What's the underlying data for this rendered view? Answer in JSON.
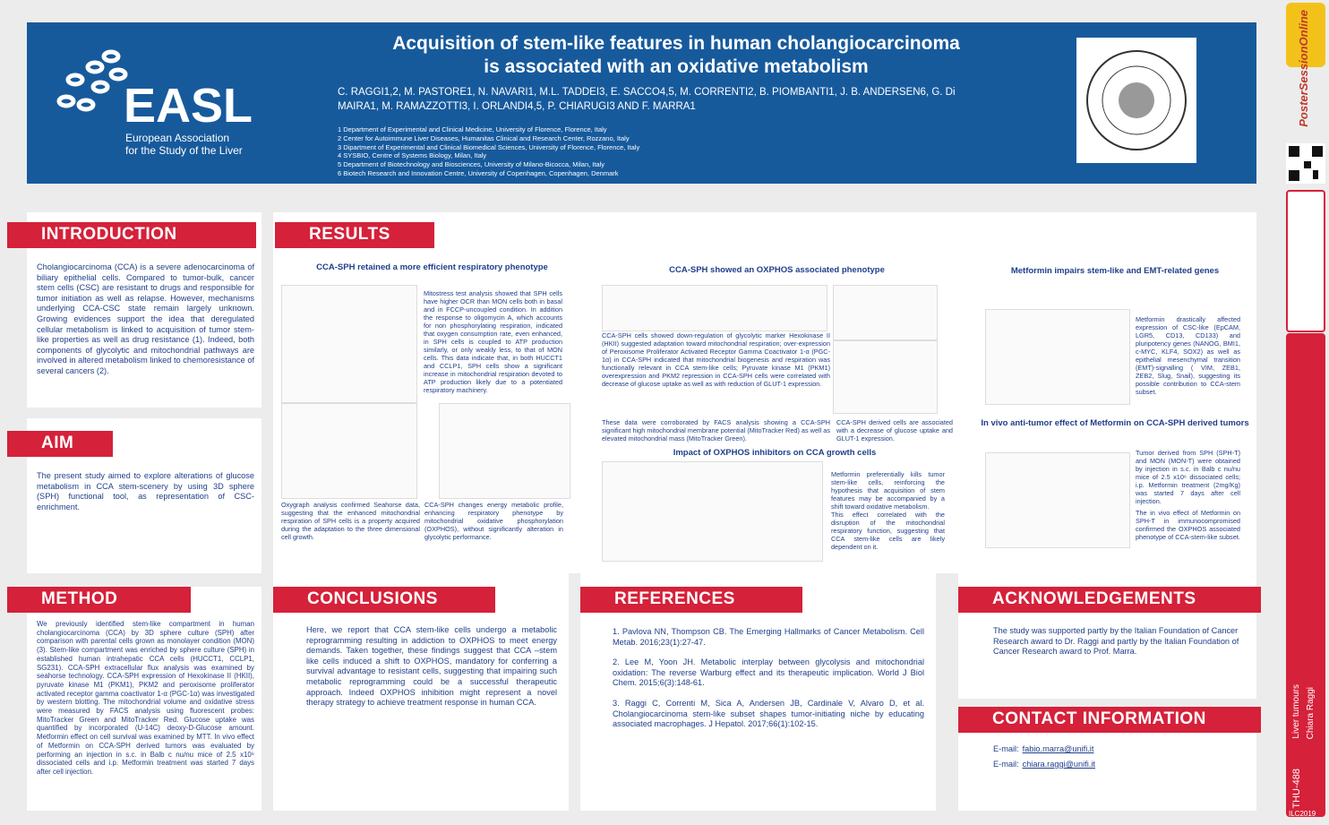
{
  "header": {
    "title_line1": "Acquisition of stem-like features in human cholangiocarcinoma",
    "title_line2": "is associated with an oxidative metabolism",
    "authors_line1": "C. RAGGI1,2, M. PASTORE1, N. NAVARI1, M.L. TADDEI3, E. SACCO4,5, M. CORRENTI2, B. PIOMBANTI1, J. B. ANDERSEN6, G. Di",
    "authors_line2": "MAIRA1, M. RAMAZZOTTI3, I. ORLANDI4,5, P. CHIARUGI3 AND F. MARRA1",
    "affiliations": [
      "1 Department of Experimental and Clinical Medicine, University of Florence, Florence, Italy",
      "2 Center for Autoimmune Liver Diseases, Humanitas Clinical and Research Center, Rozzano, Italy",
      "3 Dipartment of Experimental and Clinical Biomedical Sciences, University of Florence, Florence, Italy",
      "4 SYSBIO, Centre of Systems Biology, Milan, Italy",
      "5 Department of Biotechnology and Biosciences, University of Milano-Bicocca, Milan, Italy",
      "6 Biotech Research and Innovation Centre, University of Copenhagen, Copenhagen, Denmark"
    ],
    "logo": "EASL",
    "logo_sub1": "European Association",
    "logo_sub2": "for the Study of the Liver"
  },
  "introduction": {
    "heading": "INTRODUCTION",
    "text": "Cholangiocarcinoma (CCA) is a severe adenocarcinoma of biliary epithelial cells. Compared to tumor-bulk, cancer stem cells (CSC) are resistant to drugs and responsible for tumor initiation as well as relapse. However, mechanisms underlying CCA-CSC state remain largely unknown. Growing evidences support the idea that deregulated cellular metabolism is linked to acquisition of tumor stem-like properties as well as drug resistance (1). Indeed, both components of glycolytic and mitochondrial pathways are involved in altered metabolism linked to chemoresistance of several cancers (2)."
  },
  "aim": {
    "heading": "AIM",
    "text": "The present study aimed to explore alterations of glucose metabolism in CCA stem-scenery by using 3D sphere (SPH) functional tool, as representation of CSC-enrichment."
  },
  "method": {
    "heading": "METHOD",
    "text": "We previously identified stem-like compartment in human cholangiocarcinoma (CCA) by 3D sphere culture (SPH) after comparison with parental cells grown as monolayer condition (MON) (3). Stem-like compartment was enriched by sphere culture (SPH) in established human intrahepatic CCA cells (HUCCT1, CCLP1, SG231). CCA-SPH extracellular flux analysis was examined by seahorse technology. CCA-SPH expression of Hexokinase II (HKII), pyruvate kinase M1 (PKM1), PKM2 and peroxisome proliferator activated receptor gamma coactivator 1-α (PGC-1α) was investigated by western blotting. The mitochondrial volume and oxidative stress were measured by FACS analysis using fluorescent probes: MitoTracker Green and MitoTracker Red. Glucose uptake was quantified by incorporated (U-14C) deoxy-D-Glucose amount. Metformin effect on cell survival was examined by MTT. In vivo effect of Metformin on CCA-SPH derived tumors was evaluated by performing an injection in s.c. in Balb c nu/nu mice of 2.5 x10⁶ dissociated cells and i.p. Metformin treatment was started 7 days after cell injection."
  },
  "results": {
    "heading": "RESULTS",
    "panels": [
      {
        "title": "CCA-SPH retained a more efficient respiratory phenotype",
        "text1": "Mitostress test analysis showed that SPH cells have higher OCR than MON cells both in basal and in FCCP-uncoupled condition. In addition the response to oligomycin A, which accounts for non phosphorylating respiration, indicated that oxygen consumption rate, even enhanced, in SPH cells is coupled to ATP production similarly, or only weakly less, to that of MON cells. This data indicate that, in both HUCCT1 and CCLP1, SPH cells show a significant increase in mitochondrial respiration devoted to ATP production likely due to a potentiated respiratory machinery.",
        "text2": "Oxygraph analysis confirmed Seahorse data, suggesting that the enhanced mitochondrial respiration of SPH cells is a property acquired during the adaptation to the three dimensional cell growth.",
        "text3": "CCA-SPH changes energy metabolic profile, enhancing respiratory phenotype by mitochondrial oxidative phosphorylation (OXPHOS), without significantly alteration in glycolytic performance."
      },
      {
        "title": "CCA-SPH showed an OXPHOS associated phenotype",
        "text1": "CCA-SPH cells showed down-regulation of glycolytic marker Hexokinase II (HKII) suggested adaptation toward mitochondrial respiration; over-expression of Peroxisome Proliferator Activated Receptor Gamma Coactivator 1-α (PGC-1α) in CCA-SPH indicated that mitochondrial biogenesis and respiration was functionally relevant in CCA stem-like cells; Pyruvate kinase M1 (PKM1) overexpression and PKM2 repression in CCA-SPH cells were correlated with decrease of glucose uptake as well as with reduction of GLUT-1 expression.",
        "text2": "These data were corroborated by FACS analysis showing a CCA-SPH significant high mitochondrial membrane potential (MitoTracker Red) as well as elevated mitochondrial mass (MitoTracker Green).",
        "text3": "CCA-SPH derived cells are associated with a decrease of glucose uptake and GLUT-1 expression."
      },
      {
        "title": "Impact of OXPHOS inhibitors on CCA growth cells",
        "text1": "Metformin preferentially kills tumor stem-like cells, reinforcing the hypothesis that acquisition of stem features may be accompanied by a shift toward oxidative metabolism.",
        "text2": "This effect correlated with the disruption of the mitochondrial respiratory function, suggesting that CCA stem-like cells are likely dependent on it."
      },
      {
        "title": "Metformin impairs stem-like and EMT-related genes",
        "text1": "Metformin drastically affected expression of CSC-like (EpCAM, LGR5, CD13, CD133) and pluripotency genes (NANOG, BMI1, c-MYC, KLF4, SOX2) as well as epithelial mesenchymal transition (EMT)-signalling ( VIM, ZEB1, ZEB2, Slug, Snail), suggesting its possible contribution to CCA-stem subset."
      },
      {
        "title": "In vivo anti-tumor effect of Metformin on CCA-SPH derived tumors",
        "text1": "Tumor derived from SPH (SPH-T) and MON (MON-T) were obtained by injection in s.c. in Balb c nu/nu mice of 2.5 x10⁶ dissociated cells; i.p. Metformin treatment (2mg/Kg) was started 7 days after cell injection.",
        "text2": "The in vivo effect of Metformin on SPH-T in immunocompromised confirmed the OXPHOS associated phenotype of CCA-stem-like subset."
      }
    ]
  },
  "conclusions": {
    "heading": "CONCLUSIONS",
    "text": "Here, we report that CCA stem-like cells undergo a metabolic reprogramming resulting in addiction to OXPHOS to meet energy demands. Taken together, these findings suggest that CCA –stem like cells induced a shift to OXPHOS, mandatory for conferring a survival advantage to resistant cells, suggesting that impairing such metabolic reprogramming could be a successful therapeutic approach. Indeed OXPHOS inhibition might represent a novel therapy strategy to achieve treatment response in human CCA."
  },
  "references": {
    "heading": "REFERENCES",
    "items": [
      "1. Pavlova NN, Thompson CB. The Emerging Hallmarks of Cancer Metabolism. Cell Metab. 2016;23(1):27-47.",
      "2. Lee M, Yoon JH. Metabolic interplay between glycolysis and mitochondrial oxidation: The reverse Warburg effect and its therapeutic implication. World J Biol Chem. 2015;6(3):148-61.",
      "3. Raggi C, Correnti M, Sica A, Andersen JB, Cardinale V, Alvaro D, et al. Cholangiocarcinoma stem-like subset shapes tumor-initiating niche by educating associated macrophages. J Hepatol. 2017;66(1):102-15."
    ]
  },
  "acknowledgements": {
    "heading": "ACKNOWLEDGEMENTS",
    "text": "The study was supported partly by the Italian Foundation of Cancer Research award to Dr. Raggi and partly by the Italian Foundation of Cancer Research award to Prof. Marra."
  },
  "contact": {
    "heading": "CONTACT INFORMATION",
    "label": "E-mail:",
    "emails": [
      "fabio.marra@unifi.it",
      "chiara.raggi@unifi.it"
    ]
  },
  "sidebar": {
    "brand": "PosterSessionOnline",
    "topic": "Liver tumours",
    "author": "Chiara Raggi",
    "code": "THU-488",
    "event": "ILC2019"
  }
}
